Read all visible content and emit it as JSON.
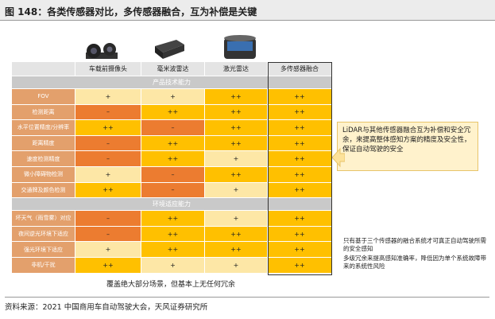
{
  "header": {
    "title": "图 148：各类传感器对比，多传感器融合，互为补偿是关键"
  },
  "table": {
    "columns": [
      "车载前摄像头",
      "毫米波雷达",
      "激光雷达",
      "多传感器融合"
    ],
    "sections": [
      {
        "title": "产品技术能力",
        "rows": [
          {
            "label": "FOV",
            "cells": [
              "+",
              "+",
              "++",
              "++"
            ]
          },
          {
            "label": "检测距离",
            "cells": [
              "–",
              "++",
              "++",
              "++"
            ]
          },
          {
            "label": "水平位置精度/分辨率",
            "cells": [
              "++",
              "–",
              "++",
              "++"
            ]
          },
          {
            "label": "距离精度",
            "cells": [
              "–",
              "++",
              "++",
              "++"
            ]
          },
          {
            "label": "速度检测精度",
            "cells": [
              "–",
              "++",
              "+",
              "++"
            ]
          },
          {
            "label": "微小障碍物检测",
            "cells": [
              "+",
              "–",
              "++",
              "++"
            ]
          },
          {
            "label": "交通牌及颜色检测",
            "cells": [
              "++",
              "–",
              "+",
              "++"
            ]
          }
        ]
      },
      {
        "title": "环境适应能力",
        "rows": [
          {
            "label": "坏天气（雨雪雾）对应",
            "cells": [
              "–",
              "++",
              "+",
              "++"
            ]
          },
          {
            "label": "夜间逆光环境下适应",
            "cells": [
              "–",
              "++",
              "++",
              "++"
            ]
          },
          {
            "label": "强光环境下适应",
            "cells": [
              "+",
              "++",
              "++",
              "++"
            ]
          },
          {
            "label": "非机/干扰",
            "cells": [
              "++",
              "+",
              "+",
              "++"
            ]
          }
        ]
      }
    ]
  },
  "callout": "LiDAR与其他传感器融合互为补偿和安全冗余，来提高整体感知方案的精度及安全性，保证自动驾驶的安全",
  "notes": [
    "只有基于三个传感器的融合系统才可真正自动驾驶所需的安全感知",
    "多级冗余来提高感知准确率，降低因为单个系统故障带来的系统性风险"
  ],
  "bottom_note": "覆盖绝大部分场景，但基本上无任何冗余",
  "source": "资料来源：2021 中国商用车自动驾驶大会，天风证券研究所"
}
